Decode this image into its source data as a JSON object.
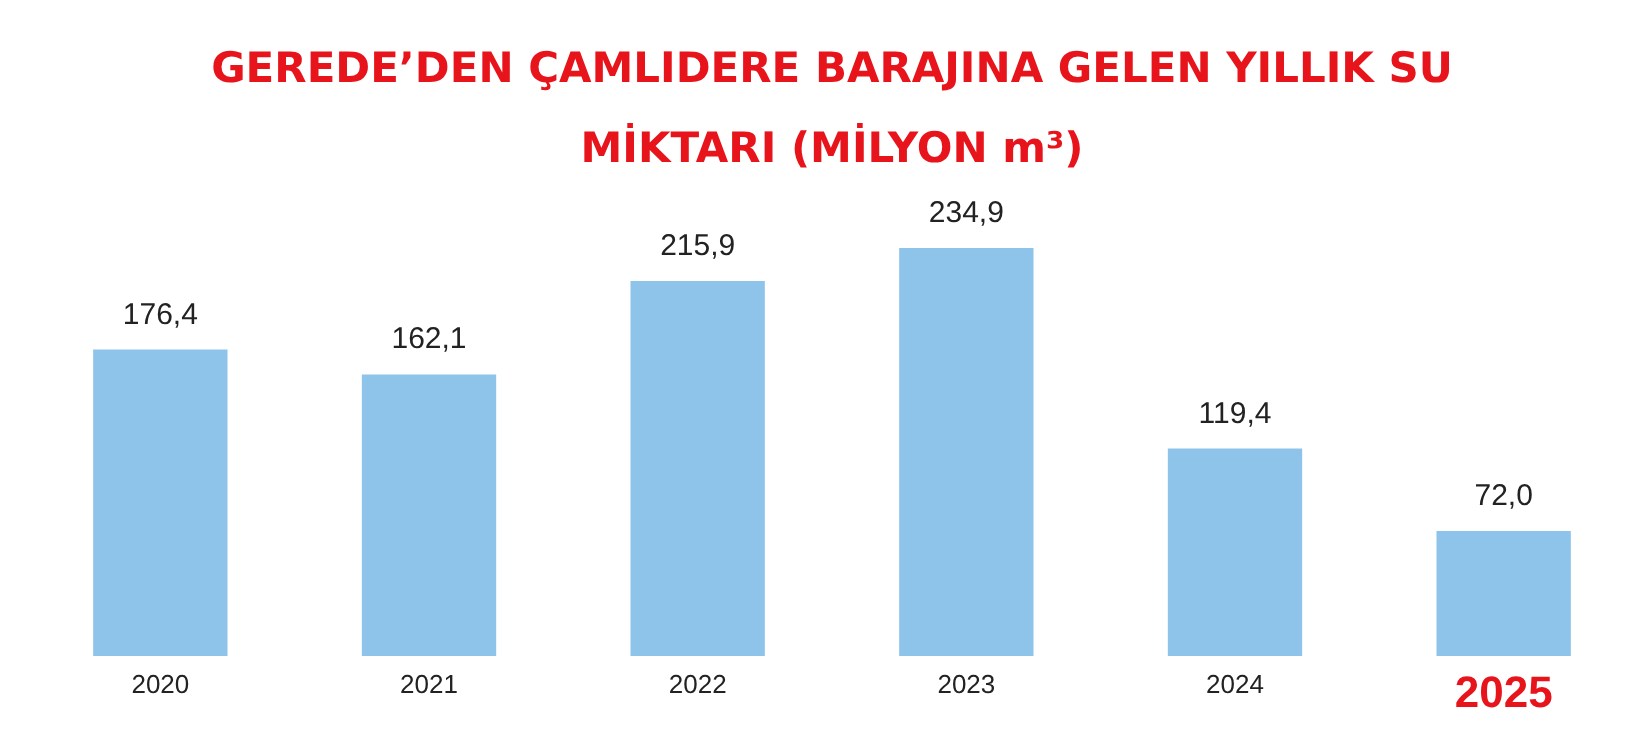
{
  "chart_data": {
    "type": "bar",
    "title": "GEREDE’DEN ÇAMLIDERE BARAJINA GELEN YILLIK SU MİKTARI (MİLYON m³)",
    "categories": [
      "2020",
      "2021",
      "2022",
      "2023",
      "2024",
      "2025"
    ],
    "values": [
      176.4,
      162.1,
      215.9,
      234.9,
      119.4,
      72.0
    ],
    "value_labels": [
      "176,4",
      "162,1",
      "215,9",
      "234,9",
      "119,4",
      "72,0"
    ],
    "color": "#8ec4ea"
  }
}
